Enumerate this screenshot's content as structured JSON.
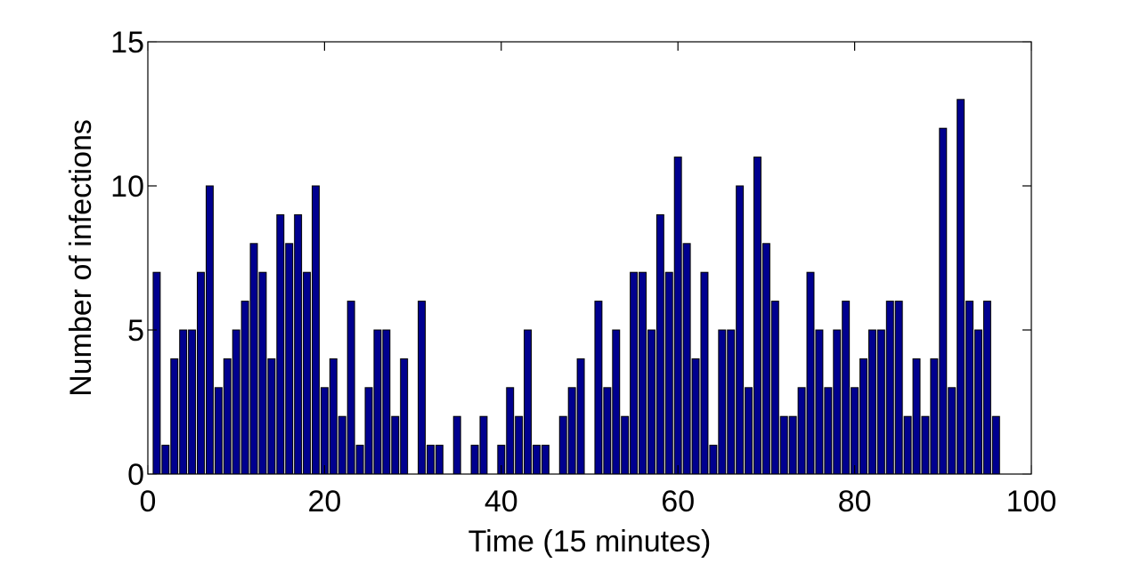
{
  "chart_data": {
    "type": "bar",
    "title": "",
    "xlabel": "Time (15 minutes)",
    "ylabel": "Number of infections",
    "xlim": [
      0,
      100
    ],
    "ylim": [
      0,
      15
    ],
    "xticks": [
      0,
      20,
      40,
      60,
      80,
      100
    ],
    "yticks": [
      0,
      5,
      10,
      15
    ],
    "grid": false,
    "bar_color": "#00008f",
    "x": [
      1,
      2,
      3,
      4,
      5,
      6,
      7,
      8,
      9,
      10,
      11,
      12,
      13,
      14,
      15,
      16,
      17,
      18,
      19,
      20,
      21,
      22,
      23,
      24,
      25,
      26,
      27,
      28,
      29,
      30,
      31,
      32,
      33,
      34,
      35,
      36,
      37,
      38,
      39,
      40,
      41,
      42,
      43,
      44,
      45,
      46,
      47,
      48,
      49,
      50,
      51,
      52,
      53,
      54,
      55,
      56,
      57,
      58,
      59,
      60,
      61,
      62,
      63,
      64,
      65,
      66,
      67,
      68,
      69,
      70,
      71,
      72,
      73,
      74,
      75,
      76,
      77,
      78,
      79,
      80,
      81,
      82,
      83,
      84,
      85,
      86,
      87,
      88,
      89,
      90,
      91,
      92,
      93,
      94,
      95,
      96
    ],
    "values": [
      7,
      1,
      4,
      5,
      5,
      7,
      10,
      3,
      4,
      5,
      6,
      8,
      7,
      4,
      9,
      8,
      9,
      7,
      10,
      3,
      4,
      2,
      6,
      1,
      3,
      5,
      5,
      2,
      4,
      0,
      6,
      1,
      1,
      0,
      2,
      0,
      1,
      2,
      0,
      1,
      3,
      2,
      5,
      1,
      1,
      0,
      2,
      3,
      4,
      0,
      6,
      3,
      5,
      2,
      7,
      7,
      5,
      9,
      7,
      11,
      8,
      4,
      7,
      1,
      5,
      5,
      10,
      3,
      11,
      8,
      6,
      2,
      2,
      3,
      7,
      5,
      3,
      5,
      6,
      3,
      4,
      5,
      5,
      6,
      6,
      2,
      4,
      2,
      4,
      12,
      3,
      13,
      6,
      5,
      6,
      2
    ]
  }
}
